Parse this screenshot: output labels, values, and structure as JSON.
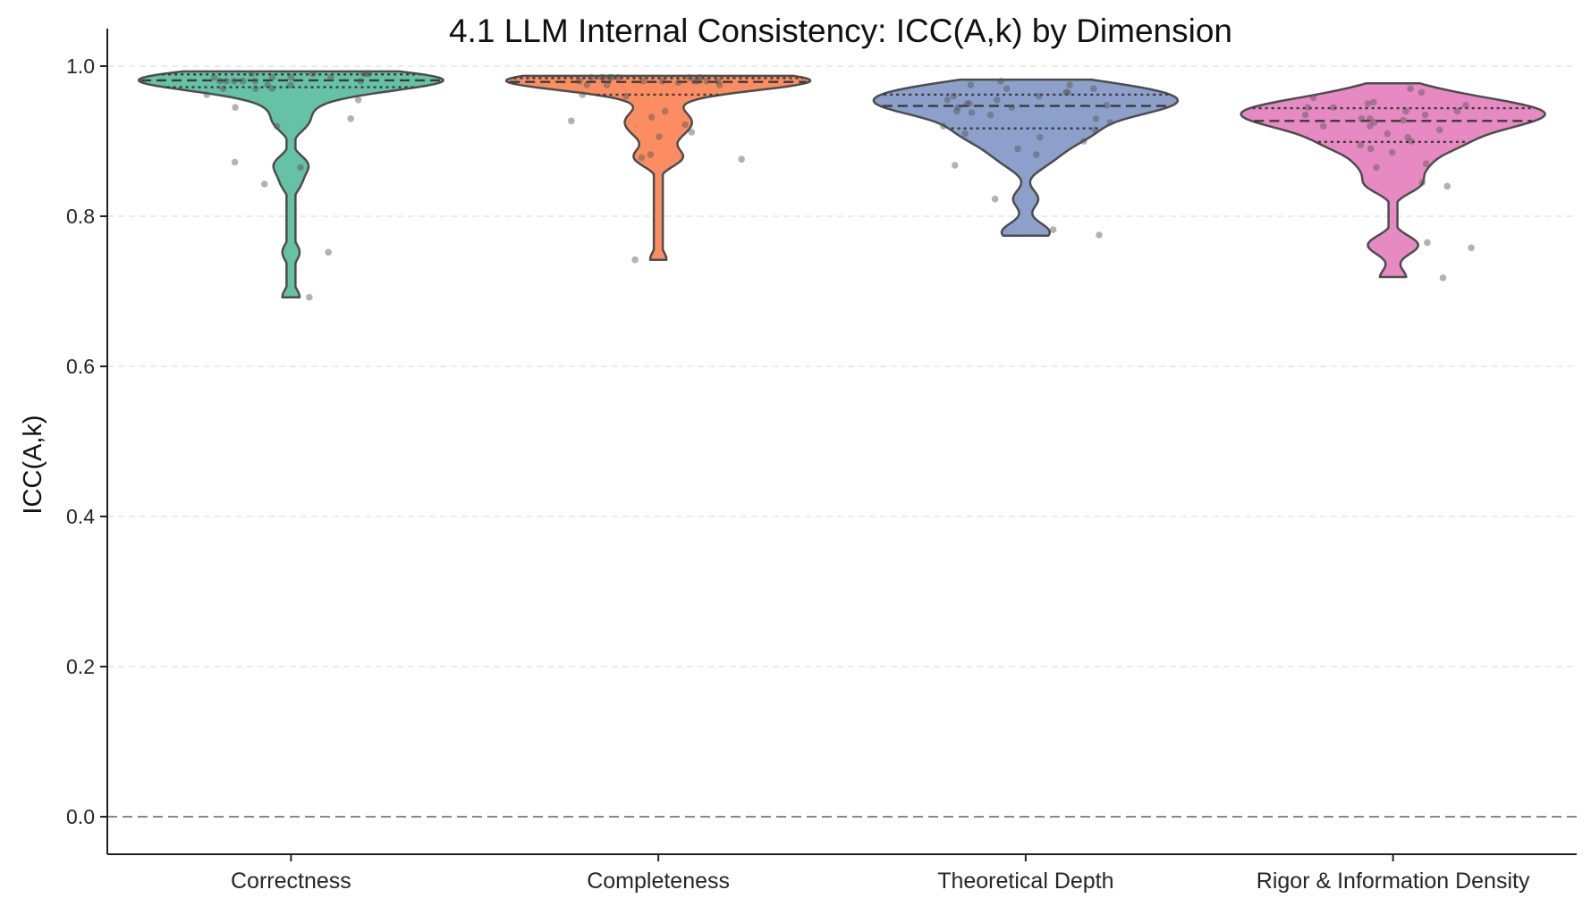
{
  "chart_data": {
    "type": "violin",
    "title": "4.1 LLM Internal Consistency: ICC(A,k) by Dimension",
    "xlabel": "",
    "ylabel": "ICC(A,k)",
    "ylim": [
      -0.05,
      1.05
    ],
    "yticks": [
      0.0,
      0.2,
      0.4,
      0.6,
      0.8,
      1.0
    ],
    "ytick_labels": [
      "0.0",
      "0.2",
      "0.4",
      "0.6",
      "0.8",
      "1.0"
    ],
    "grid": "y-dashed",
    "reference_line": 0.0,
    "categories": [
      "Correctness",
      "Completeness",
      "Theoretical Depth",
      "Rigor & Information Density"
    ],
    "series": [
      {
        "category": "Correctness",
        "color": "#66c2a5",
        "range": [
          0.692,
          0.993
        ],
        "quartiles": [
          0.972,
          0.981,
          0.989
        ],
        "points": [
          0.98,
          0.99,
          0.985,
          0.97,
          0.99,
          0.98,
          0.975,
          0.985,
          0.99,
          0.98,
          0.97,
          0.99,
          0.985,
          0.98,
          0.975,
          0.99,
          0.98,
          0.985,
          0.97,
          0.98,
          0.962,
          0.955,
          0.945,
          0.93,
          0.92,
          0.872,
          0.865,
          0.843,
          0.752,
          0.692
        ]
      },
      {
        "category": "Completeness",
        "color": "#fc8d62",
        "range": [
          0.742,
          0.987
        ],
        "quartiles": [
          0.962,
          0.979,
          0.984
        ],
        "points": [
          0.985,
          0.98,
          0.985,
          0.98,
          0.985,
          0.975,
          0.98,
          0.985,
          0.98,
          0.985,
          0.975,
          0.98,
          0.985,
          0.978,
          0.985,
          0.98,
          0.975,
          0.985,
          0.98,
          0.96,
          0.962,
          0.94,
          0.932,
          0.927,
          0.922,
          0.912,
          0.906,
          0.882,
          0.878,
          0.876,
          0.742
        ]
      },
      {
        "category": "Theoretical Depth",
        "color": "#8da0cb",
        "range": [
          0.774,
          0.982
        ],
        "quartiles": [
          0.917,
          0.947,
          0.962
        ],
        "points": [
          0.98,
          0.975,
          0.97,
          0.965,
          0.96,
          0.955,
          0.95,
          0.948,
          0.945,
          0.94,
          0.935,
          0.93,
          0.925,
          0.92,
          0.915,
          0.91,
          0.905,
          0.9,
          0.96,
          0.955,
          0.945,
          0.938,
          0.965,
          0.975,
          0.97,
          0.95,
          0.89,
          0.882,
          0.868,
          0.823,
          0.782,
          0.775
        ]
      },
      {
        "category": "Rigor & Information Density",
        "color": "#e78ac3",
        "range": [
          0.719,
          0.977
        ],
        "quartiles": [
          0.899,
          0.927,
          0.944
        ],
        "points": [
          0.97,
          0.965,
          0.958,
          0.952,
          0.948,
          0.945,
          0.94,
          0.935,
          0.93,
          0.928,
          0.925,
          0.92,
          0.915,
          0.91,
          0.905,
          0.9,
          0.895,
          0.89,
          0.885,
          0.95,
          0.945,
          0.94,
          0.935,
          0.93,
          0.92,
          0.87,
          0.865,
          0.845,
          0.84,
          0.765,
          0.758,
          0.718
        ]
      }
    ]
  }
}
